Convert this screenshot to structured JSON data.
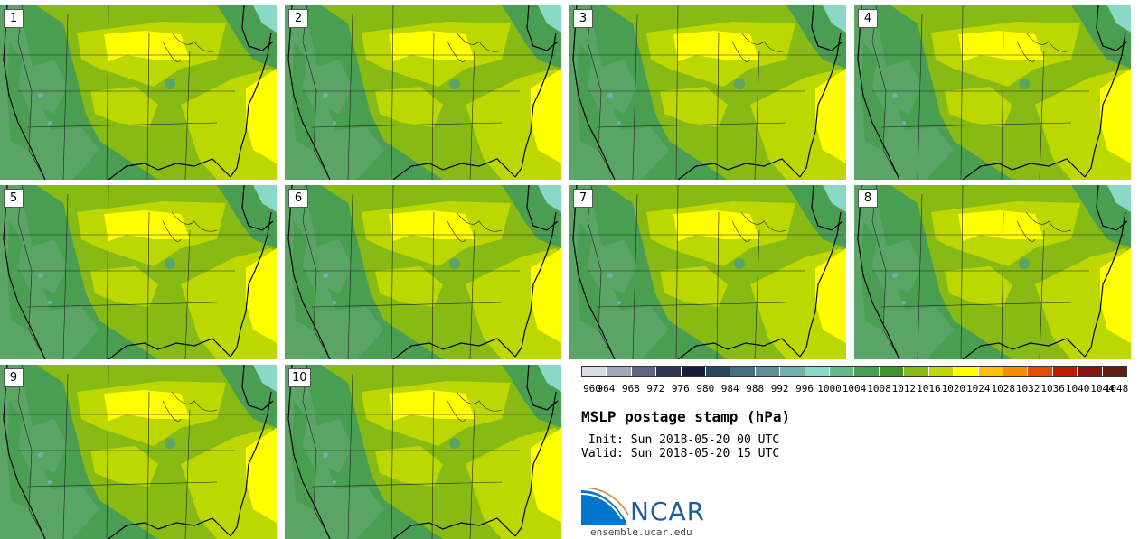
{
  "members": [
    "1",
    "2",
    "3",
    "4",
    "5",
    "6",
    "7",
    "8",
    "9",
    "10"
  ],
  "title": "MSLP postage stamp (hPa)",
  "init_line": " Init: Sun 2018-05-20 00 UTC",
  "valid_line": "Valid: Sun 2018-05-20 15 UTC",
  "colorbar": {
    "levels": [
      "960",
      "964",
      "968",
      "972",
      "976",
      "980",
      "984",
      "988",
      "992",
      "996",
      "1000",
      "1004",
      "1008",
      "1012",
      "1016",
      "1020",
      "1024",
      "1028",
      "1032",
      "1036",
      "1040",
      "1044",
      "1048"
    ],
    "colors": [
      "#d8dde6",
      "#a3a8b8",
      "#5d6781",
      "#2b3653",
      "#172038",
      "#2c4561",
      "#46707f",
      "#5f8f92",
      "#72b0b0",
      "#8ad8c8",
      "#66b98a",
      "#4a9e52",
      "#3f9430",
      "#87ba14",
      "#bcd800",
      "#ffff00",
      "#ffc000",
      "#ff8c00",
      "#e84c00",
      "#c01c00",
      "#8c1410",
      "#602010"
    ]
  },
  "map_colors": {
    "low": "#4a9e52",
    "mid_low": "#5aa566",
    "mid": "#87ba14",
    "mid_high": "#bcd800",
    "high": "#ffff00",
    "coast_low": "#8ad8c8",
    "terrain": "#72b0b0"
  },
  "logo": {
    "word": "NCAR",
    "site": "ensemble.ucar.edu"
  }
}
